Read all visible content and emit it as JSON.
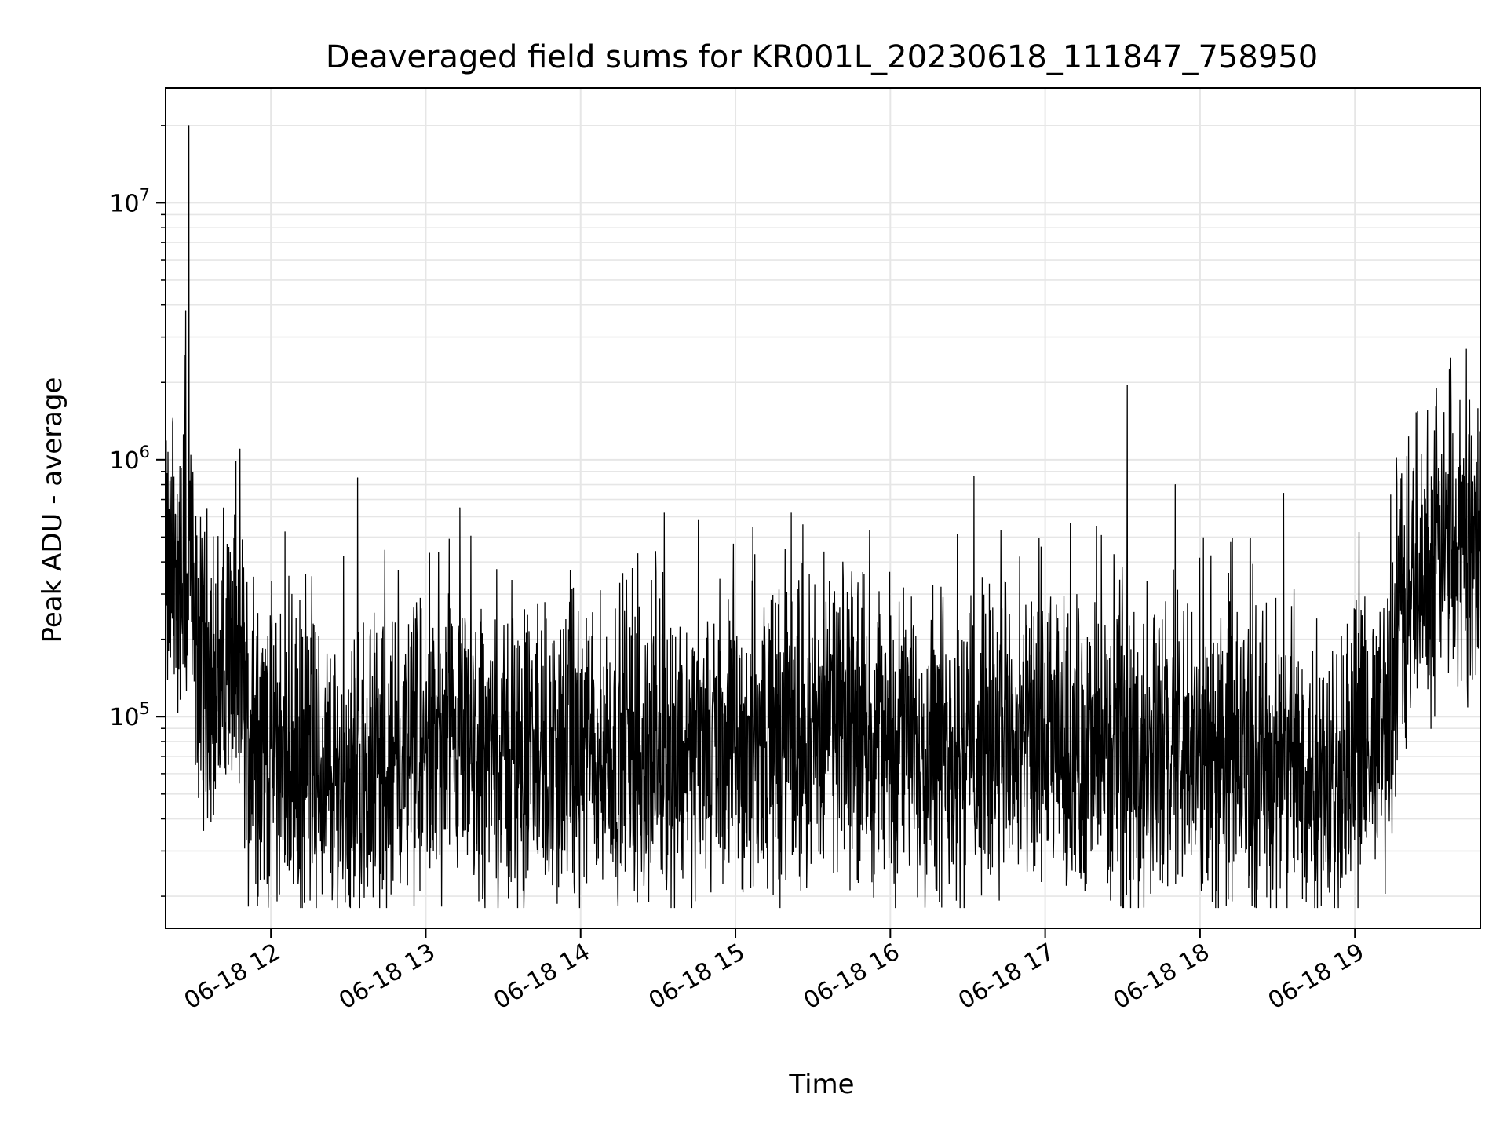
{
  "chart_data": {
    "type": "line",
    "title": "Deaveraged field sums for KR001L_20230618_111847_758950",
    "xlabel": "Time",
    "ylabel": "Peak ADU - average",
    "yscale": "log",
    "ylim": [
      15000,
      28000000
    ],
    "xlim_hours": [
      11.32,
      19.81
    ],
    "x_ticks": [
      {
        "hour": 12,
        "label": "06-18 12"
      },
      {
        "hour": 13,
        "label": "06-18 13"
      },
      {
        "hour": 14,
        "label": "06-18 14"
      },
      {
        "hour": 15,
        "label": "06-18 15"
      },
      {
        "hour": 16,
        "label": "06-18 16"
      },
      {
        "hour": 17,
        "label": "06-18 17"
      },
      {
        "hour": 18,
        "label": "06-18 18"
      },
      {
        "hour": 19,
        "label": "06-18 19"
      }
    ],
    "y_ticks": [
      {
        "value": 100000,
        "base": "10",
        "exp": "5"
      },
      {
        "value": 1000000,
        "base": "10",
        "exp": "6"
      },
      {
        "value": 10000000,
        "base": "10",
        "exp": "7"
      }
    ],
    "grid": true,
    "line_color": "#000000",
    "grid_color": "#e6e6e6",
    "series": [
      {
        "x": [
          11.32,
          11.35,
          11.38,
          11.41,
          11.43,
          11.45,
          11.47,
          11.5,
          11.55,
          11.6,
          11.65,
          11.7,
          11.75,
          11.8,
          11.85,
          11.9,
          12.0,
          12.1,
          12.2,
          12.3,
          12.4,
          12.5,
          12.56,
          12.6,
          12.7,
          12.8,
          12.9,
          13.0,
          13.1,
          13.2,
          13.22,
          13.3,
          13.4,
          13.5,
          13.6,
          13.7,
          13.8,
          13.9,
          14.0,
          14.2,
          14.4,
          14.5,
          14.54,
          14.6,
          14.7,
          14.76,
          14.8,
          15.0,
          15.2,
          15.36,
          15.4,
          15.6,
          15.7,
          15.8,
          16.0,
          16.2,
          16.4,
          16.54,
          16.6,
          16.8,
          17.0,
          17.2,
          17.4,
          17.53,
          17.6,
          17.8,
          17.84,
          18.0,
          18.2,
          18.4,
          18.54,
          18.6,
          18.8,
          18.9,
          19.0,
          19.1,
          19.2,
          19.3,
          19.4,
          19.5,
          19.6,
          19.61,
          19.65,
          19.7,
          19.75,
          19.81
        ],
        "y": [
          350000,
          320000,
          380000,
          300000,
          330000,
          3800000,
          20000000,
          200000,
          150000,
          180000,
          120000,
          150000,
          180000,
          1100000,
          90000,
          80000,
          75000,
          70000,
          65000,
          60000,
          55000,
          58000,
          850000,
          60000,
          62000,
          65000,
          70000,
          72000,
          70000,
          68000,
          650000,
          66000,
          68000,
          70000,
          68000,
          72000,
          70000,
          72000,
          75000,
          75000,
          72000,
          74000,
          620000,
          72000,
          74000,
          580000,
          74000,
          76000,
          80000,
          620000,
          80000,
          95000,
          90000,
          85000,
          82000,
          80000,
          78000,
          860000,
          78000,
          75000,
          73000,
          72000,
          70000,
          1950000,
          72000,
          70000,
          800000,
          70000,
          68000,
          66000,
          740000,
          64000,
          62000,
          63000,
          65000,
          70000,
          90000,
          250000,
          350000,
          420000,
          480000,
          2250000,
          480000,
          520000,
          560000,
          500000
        ]
      }
    ]
  }
}
